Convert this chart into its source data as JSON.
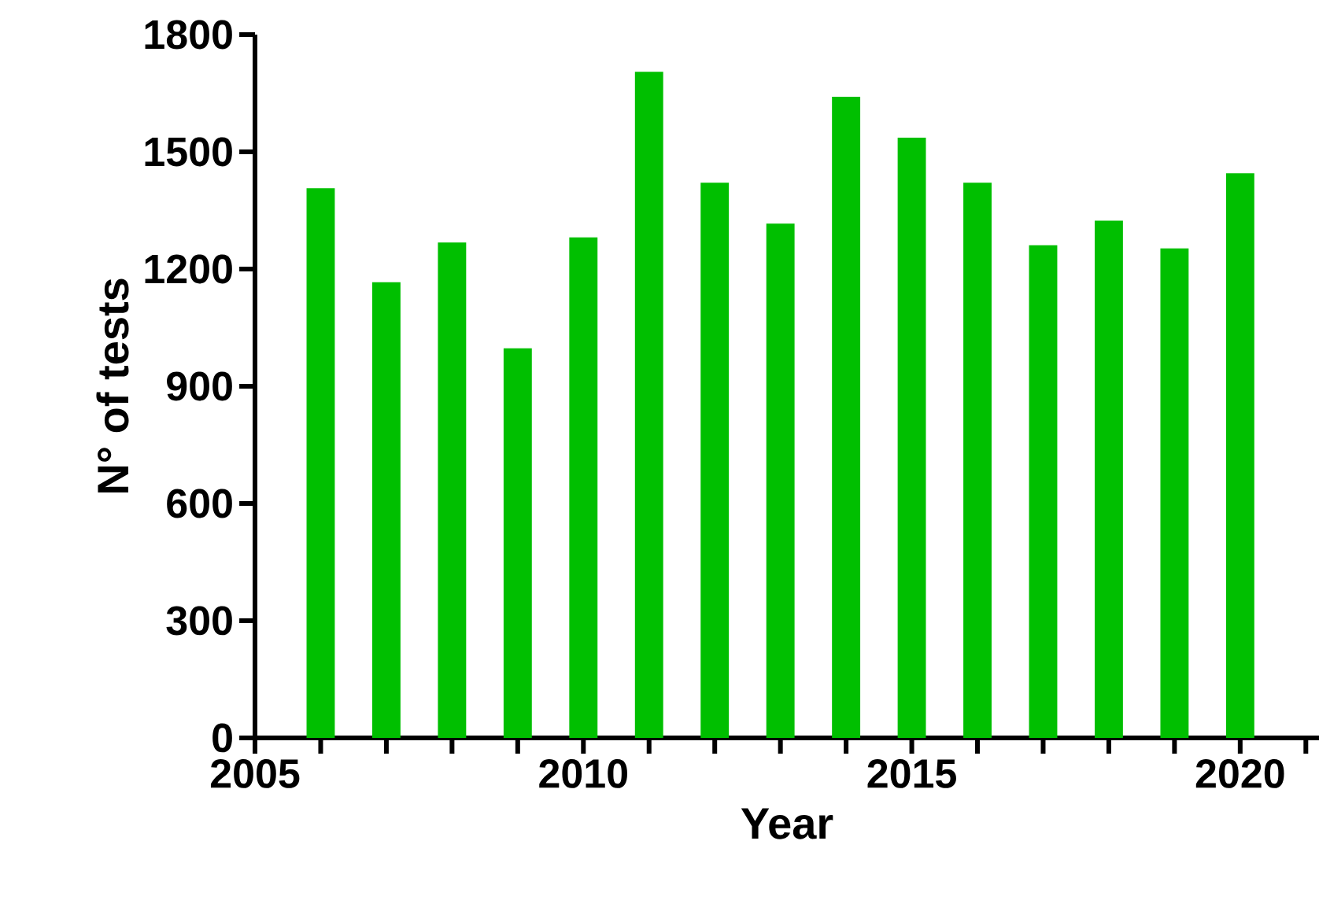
{
  "chart_data": {
    "type": "bar",
    "xlabel": "Year",
    "ylabel": "N° of tests",
    "x": [
      2006,
      2007,
      2008,
      2009,
      2010,
      2011,
      2012,
      2013,
      2014,
      2015,
      2016,
      2017,
      2018,
      2019,
      2020
    ],
    "values": [
      1407,
      1166,
      1268,
      997,
      1281,
      1705,
      1421,
      1316,
      1641,
      1536,
      1421,
      1261,
      1324,
      1253,
      1445
    ],
    "color": "#00bf00",
    "xlim": [
      2005,
      2021.2
    ],
    "xticks": [
      2005,
      {
        "value": 2006,
        "label": null
      },
      {
        "value": 2007,
        "label": null
      },
      {
        "value": 2008,
        "label": null
      },
      {
        "value": 2009,
        "label": null
      },
      2010,
      {
        "value": 2011,
        "label": null
      },
      {
        "value": 2012,
        "label": null
      },
      {
        "value": 2013,
        "label": null
      },
      {
        "value": 2014,
        "label": null
      },
      2015,
      {
        "value": 2016,
        "label": null
      },
      {
        "value": 2017,
        "label": null
      },
      {
        "value": 2018,
        "label": null
      },
      {
        "value": 2019,
        "label": null
      },
      2020,
      {
        "value": 2021,
        "label": null
      }
    ],
    "ylim": [
      0,
      1800
    ],
    "yticks": [
      0,
      300,
      600,
      900,
      1200,
      1500,
      1800
    ]
  }
}
